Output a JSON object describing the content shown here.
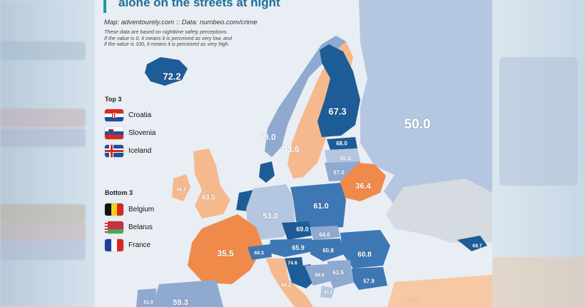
{
  "map": {
    "title": "alone on the streets at night",
    "source": "Map: adventourely.com :: Data: numbeo.com/crime",
    "note_lines": [
      "These data are based on nighttime safety perceptions.",
      "If the value is 0, it means it is perceived as very low, and",
      "if the value is 100, it means it is perceived as very high."
    ],
    "colors": {
      "sea": "#e8eef3",
      "dark_blue": "#1d5c96",
      "mid_blue": "#3d77b4",
      "light_blue": "#8fa9d0",
      "pale_blue": "#b5c6e0",
      "orange": "#f08a4b",
      "peach": "#f6b98e",
      "gray": "#d5dbe0"
    },
    "top3": {
      "title": "Top 3",
      "items": [
        {
          "name": "Croatia",
          "flag": "croatia-flag"
        },
        {
          "name": "Slovenia",
          "flag": "slovenia-flag"
        },
        {
          "name": "Iceland",
          "flag": "iceland-flag"
        }
      ]
    },
    "bottom3": {
      "title": "Bottom 3",
      "items": [
        {
          "name": "Belgium",
          "flag": "belgium-flag"
        },
        {
          "name": "Belarus",
          "flag": "belarus-flag"
        },
        {
          "name": "France",
          "flag": "france-flag"
        }
      ]
    },
    "values": [
      {
        "id": "iceland",
        "text": "72.2",
        "size": "big"
      },
      {
        "id": "finland",
        "text": "67.3",
        "size": "big"
      },
      {
        "id": "russia",
        "text": "50.0",
        "size": "huge"
      },
      {
        "id": "norway",
        "text": "59.0",
        "size": "mid"
      },
      {
        "id": "sweden",
        "text": "43.6",
        "size": "mid"
      },
      {
        "id": "estonia",
        "text": "68.0",
        "size": "small"
      },
      {
        "id": "latvia",
        "text": "55.0",
        "size": "small"
      },
      {
        "id": "lithuania",
        "text": "57.0",
        "size": "small"
      },
      {
        "id": "belarus",
        "text": "36.4",
        "size": "mid"
      },
      {
        "id": "ireland",
        "text": "44.2",
        "size": "tiny"
      },
      {
        "id": "uk",
        "text": "43.0",
        "size": "mid"
      },
      {
        "id": "poland",
        "text": "61.0",
        "size": "mid"
      },
      {
        "id": "germany",
        "text": "53.0",
        "size": "mid"
      },
      {
        "id": "czechia",
        "text": "69.0",
        "size": "small"
      },
      {
        "id": "slovakia",
        "text": "64.6",
        "size": "small"
      },
      {
        "id": "austria",
        "text": "65.9",
        "size": "small"
      },
      {
        "id": "hungary",
        "text": "60.8",
        "size": "small"
      },
      {
        "id": "romania",
        "text": "60.8",
        "size": "mid"
      },
      {
        "id": "moldova",
        "text": "69.7",
        "size": "small"
      },
      {
        "id": "france",
        "text": "35.5",
        "size": "mid"
      },
      {
        "id": "switzerland",
        "text": "69.3",
        "size": "tiny"
      },
      {
        "id": "slovenia",
        "text": "74.6",
        "size": "tiny"
      },
      {
        "id": "bosnia",
        "text": "56.6",
        "size": "tiny"
      },
      {
        "id": "serbia",
        "text": "63.5",
        "size": "small"
      },
      {
        "id": "bulgaria",
        "text": "57.9",
        "size": "small"
      },
      {
        "id": "italy",
        "text": "44.2",
        "size": "tiny"
      },
      {
        "id": "montenegro",
        "text": "61.2",
        "size": "tiny"
      },
      {
        "id": "turkey",
        "text": "49.9",
        "size": "small"
      },
      {
        "id": "spain",
        "text": "59.3",
        "size": "mid"
      },
      {
        "id": "portugal",
        "text": "61.9",
        "size": "tiny"
      }
    ]
  }
}
